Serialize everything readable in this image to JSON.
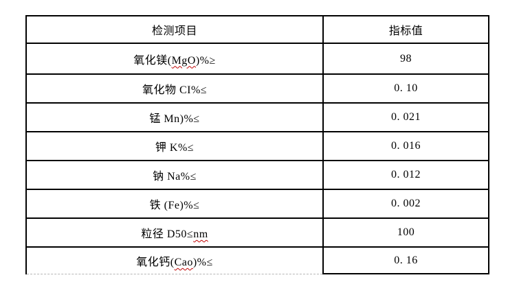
{
  "page": {
    "background_color": "#ffffff",
    "text_color": "#000000",
    "border_color": "#000000",
    "continuation_border_color": "#b5b5b5",
    "spellcheck_underline_color": "#c00000"
  },
  "table": {
    "headers": [
      "检测项目",
      "指标值"
    ],
    "rows": [
      {
        "item_pre": "氧化镁(",
        "item_misspelled": "MgO",
        "item_post": ")%≥",
        "value": "98"
      },
      {
        "item_pre": "氧化物 CI%≤",
        "item_misspelled": "",
        "item_post": "",
        "value": "0. 10"
      },
      {
        "item_pre": "锰 Mn)%≤",
        "item_misspelled": "",
        "item_post": "",
        "value": "0. 021"
      },
      {
        "item_pre": "钾 K%≤",
        "item_misspelled": "",
        "item_post": "",
        "value": "0. 016"
      },
      {
        "item_pre": "钠 Na%≤",
        "item_misspelled": "",
        "item_post": "",
        "value": "0. 012"
      },
      {
        "item_pre": "铁 (Fe)%≤",
        "item_misspelled": "",
        "item_post": "",
        "value": "0. 002"
      },
      {
        "item_pre": "粒径 D50≤",
        "item_misspelled": "nm",
        "item_post": "",
        "value": "100"
      },
      {
        "item_pre": "氧化钙(",
        "item_misspelled": "Cao",
        "item_post": ")%≤",
        "value": "0. 16"
      }
    ]
  }
}
